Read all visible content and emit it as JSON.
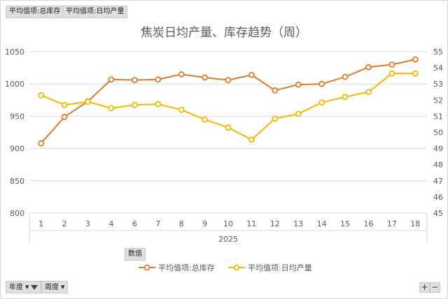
{
  "filter_buttons": {
    "top_left_1": "平均值项:总库存",
    "top_left_2": "平均值项:日均产量",
    "values_field": "数值",
    "year_field": "年度",
    "week_field": "周度",
    "expand": "+",
    "collapse": "−"
  },
  "colors": {
    "series_1": "#e07b2a",
    "series_2": "#f5b800",
    "grid": "#d9d9d9",
    "axis_text": "#595959",
    "title": "#595959"
  },
  "chart_data": {
    "type": "line",
    "title": "焦炭日均产量、库存趋势（周）",
    "categories": [
      "1",
      "2",
      "3",
      "4",
      "6",
      "7",
      "8",
      "9",
      "10",
      "11",
      "12",
      "13",
      "14",
      "15",
      "16",
      "17",
      "18"
    ],
    "x_group_label": "2025",
    "y_left": {
      "min": 800,
      "max": 1050,
      "ticks": [
        800,
        850,
        900,
        950,
        1000,
        1050
      ]
    },
    "y_right": {
      "min": 45,
      "max": 55,
      "ticks": [
        45,
        46,
        47,
        48,
        49,
        50,
        51,
        52,
        53,
        54,
        55
      ]
    },
    "grid": true,
    "legend_position": "bottom",
    "series": [
      {
        "name": "平均值项:总库存",
        "axis": "left",
        "color": "#e07b2a",
        "values": [
          908,
          949,
          973,
          1007,
          1006,
          1007,
          1015,
          1010,
          1006,
          1014,
          990,
          999,
          1000,
          1011,
          1026,
          1030,
          1038
        ]
      },
      {
        "name": "平均值项:日均产量",
        "axis": "right",
        "color": "#f5b800",
        "values": [
          52.3,
          51.7,
          51.9,
          51.5,
          51.7,
          51.75,
          51.4,
          50.8,
          50.3,
          49.55,
          50.85,
          51.15,
          51.85,
          52.2,
          52.5,
          53.65,
          53.65
        ]
      }
    ]
  }
}
